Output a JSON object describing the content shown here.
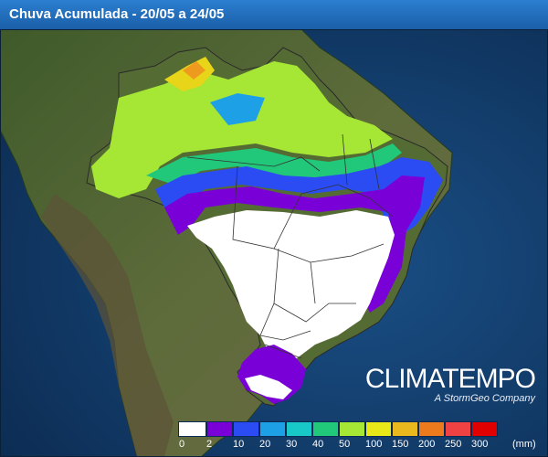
{
  "title": "Chuva Acumulada - 20/05 a 24/05",
  "brand": {
    "name": "CLIMATEMPO",
    "tagline": "A StormGeo Company"
  },
  "legend": {
    "unit": "(mm)",
    "colors": [
      "#ffffff",
      "#7a00d8",
      "#2a4cf2",
      "#1ea0e6",
      "#18c8c8",
      "#22c87a",
      "#a6e635",
      "#e8e818",
      "#e8b81e",
      "#ee7a1e",
      "#f04242",
      "#e00000"
    ],
    "ticks": [
      "0",
      "2",
      "10",
      "20",
      "30",
      "40",
      "50",
      "100",
      "150",
      "200",
      "250",
      "300"
    ]
  },
  "map": {
    "ocean_color": "#123a66",
    "land_color": "#4f5a34",
    "brazil_border_color": "#2a2a2a"
  }
}
